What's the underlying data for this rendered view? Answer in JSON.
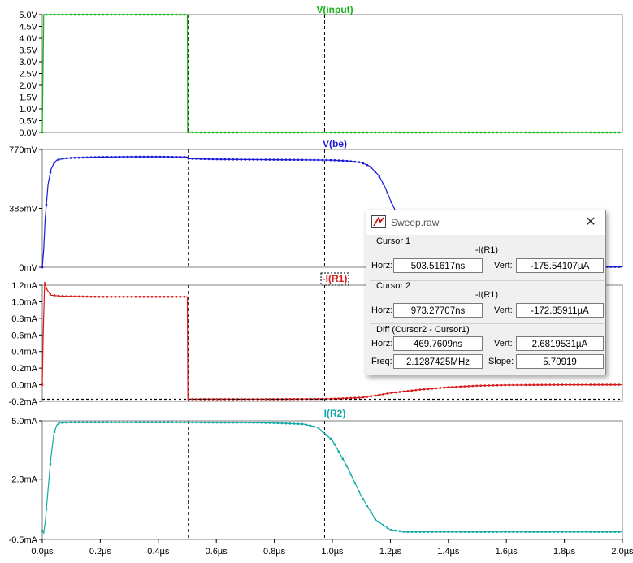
{
  "colors": {
    "input": "#19b319",
    "vbe": "#1a1ad6",
    "ir1": "#d61a1a",
    "ir2": "#13a8a8",
    "axis_text": "#000000",
    "grid": "#000000"
  },
  "x_axis": {
    "range_us": [
      0,
      2.0
    ],
    "ticks": [
      "0.0µs",
      "0.2µs",
      "0.4µs",
      "0.6µs",
      "0.8µs",
      "1.0µs",
      "1.2µs",
      "1.4µs",
      "1.6µs",
      "1.8µs",
      "2.0µs"
    ]
  },
  "cursors_us": [
    0.5035,
    0.9733
  ],
  "hline_ir1": -0.1755,
  "panes": [
    {
      "title": "V(input)",
      "ylim": [
        0,
        5.0
      ],
      "ticks": [
        {
          "v": 5.0,
          "l": "5.0V"
        },
        {
          "v": 4.5,
          "l": "4.5V"
        },
        {
          "v": 4.0,
          "l": "4.0V"
        },
        {
          "v": 3.5,
          "l": "3.5V"
        },
        {
          "v": 3.0,
          "l": "3.0V"
        },
        {
          "v": 2.5,
          "l": "2.5V"
        },
        {
          "v": 2.0,
          "l": "2.0V"
        },
        {
          "v": 1.5,
          "l": "1.5V"
        },
        {
          "v": 1.0,
          "l": "1.0V"
        },
        {
          "v": 0.5,
          "l": "0.5V"
        },
        {
          "v": 0.0,
          "l": "0.0V"
        }
      ]
    },
    {
      "title": "V(be)",
      "ylim": [
        0,
        770
      ],
      "ticks": [
        {
          "v": 770,
          "l": "770mV"
        },
        {
          "v": 385,
          "l": "385mV"
        },
        {
          "v": 0,
          "l": "0mV"
        }
      ]
    },
    {
      "title": "-I(R1)",
      "ylim": [
        -0.2,
        1.2
      ],
      "ticks": [
        {
          "v": 1.2,
          "l": "1.2mA"
        },
        {
          "v": 1.0,
          "l": "1.0mA"
        },
        {
          "v": 0.8,
          "l": "0.8mA"
        },
        {
          "v": 0.6,
          "l": "0.6mA"
        },
        {
          "v": 0.4,
          "l": "0.4mA"
        },
        {
          "v": 0.2,
          "l": "0.2mA"
        },
        {
          "v": 0.0,
          "l": "0.0mA"
        },
        {
          "v": -0.2,
          "l": "-0.2mA"
        }
      ]
    },
    {
      "title": "I(R2)",
      "ylim": [
        -0.5,
        5.0
      ],
      "ticks": [
        {
          "v": 5.0,
          "l": "5.0mA"
        },
        {
          "v": 2.3,
          "l": "2.3mA"
        },
        {
          "v": -0.5,
          "l": "-0.5mA"
        }
      ]
    }
  ],
  "chart_data": [
    {
      "type": "line",
      "title": "V(input)",
      "xlabel": "",
      "ylabel": "",
      "xlim": [
        0,
        2.0
      ],
      "ylim": [
        0,
        5.0
      ],
      "series": [
        {
          "name": "V(input)",
          "x": [
            0,
            0.005,
            0.5,
            0.501,
            2.0
          ],
          "y": [
            0,
            5.0,
            5.0,
            0,
            0
          ]
        }
      ]
    },
    {
      "type": "line",
      "title": "V(be)",
      "xlabel": "",
      "ylabel": "",
      "xlim": [
        0,
        2.0
      ],
      "ylim": [
        0,
        770
      ],
      "series": [
        {
          "name": "V(be)",
          "x": [
            0,
            0.005,
            0.01,
            0.02,
            0.03,
            0.04,
            0.05,
            0.07,
            0.1,
            0.2,
            0.3,
            0.4,
            0.5,
            0.502,
            0.6,
            0.7,
            0.8,
            0.9,
            1.0,
            1.05,
            1.1,
            1.13,
            1.16,
            1.18,
            1.2,
            1.22,
            1.25,
            1.3,
            1.4,
            1.5,
            1.6,
            1.7,
            2.0
          ],
          "y": [
            0,
            120,
            320,
            540,
            640,
            680,
            700,
            710,
            715,
            720,
            722,
            722,
            720,
            710,
            706,
            704,
            703,
            702,
            700,
            695,
            685,
            660,
            600,
            530,
            440,
            360,
            270,
            170,
            70,
            30,
            12,
            5,
            2
          ]
        }
      ]
    },
    {
      "type": "line",
      "title": "-I(R1)",
      "xlabel": "",
      "ylabel": "",
      "xlim": [
        0,
        2.0
      ],
      "ylim": [
        -0.2,
        1.2
      ],
      "series": [
        {
          "name": "-I(R1)",
          "x": [
            0,
            0.003,
            0.008,
            0.015,
            0.03,
            0.06,
            0.1,
            0.2,
            0.3,
            0.4,
            0.5,
            0.502,
            0.6,
            0.8,
            1.0,
            1.1,
            1.15,
            1.2,
            1.3,
            1.4,
            1.5,
            1.6,
            1.8,
            2.0
          ],
          "y": [
            0,
            0.6,
            1.24,
            1.15,
            1.08,
            1.07,
            1.065,
            1.06,
            1.06,
            1.06,
            1.06,
            -0.175,
            -0.175,
            -0.175,
            -0.17,
            -0.155,
            -0.13,
            -0.1,
            -0.06,
            -0.03,
            -0.012,
            -0.004,
            0,
            0
          ]
        }
      ]
    },
    {
      "type": "line",
      "title": "I(R2)",
      "xlabel": "",
      "ylabel": "",
      "xlim": [
        0,
        2.0
      ],
      "ylim": [
        -0.5,
        5.0
      ],
      "series": [
        {
          "name": "I(R2)",
          "x": [
            0,
            0.005,
            0.01,
            0.02,
            0.03,
            0.04,
            0.05,
            0.06,
            0.08,
            0.1,
            0.2,
            0.3,
            0.4,
            0.5,
            0.6,
            0.7,
            0.8,
            0.9,
            0.95,
            1.0,
            1.05,
            1.1,
            1.15,
            1.2,
            1.25,
            1.4,
            1.6,
            1.8,
            2.0
          ],
          "y": [
            -0.1,
            -0.2,
            0.3,
            1.8,
            3.3,
            4.4,
            4.8,
            4.9,
            4.92,
            4.93,
            4.93,
            4.93,
            4.93,
            4.93,
            4.92,
            4.92,
            4.9,
            4.85,
            4.7,
            4.1,
            2.9,
            1.5,
            0.4,
            -0.05,
            -0.15,
            -0.15,
            -0.15,
            -0.15,
            -0.15
          ]
        }
      ]
    }
  ],
  "dialog": {
    "title": "Sweep.raw",
    "cursor1": {
      "label": "Cursor 1",
      "name": "-I(R1)",
      "horz_label": "Horz:",
      "horz": "503.51617ns",
      "vert_label": "Vert:",
      "vert": "-175.54107µA"
    },
    "cursor2": {
      "label": "Cursor 2",
      "name": "-I(R1)",
      "horz_label": "Horz:",
      "horz": "973.27707ns",
      "vert_label": "Vert:",
      "vert": "-172.85911µA"
    },
    "diff": {
      "label": "Diff (Cursor2 - Cursor1)",
      "horz_label": "Horz:",
      "horz": "469.7609ns",
      "vert_label": "Vert:",
      "vert": "2.6819531µA",
      "freq_label": "Freq:",
      "freq": "2.1287425MHz",
      "slope_label": "Slope:",
      "slope": "5.70919"
    }
  }
}
